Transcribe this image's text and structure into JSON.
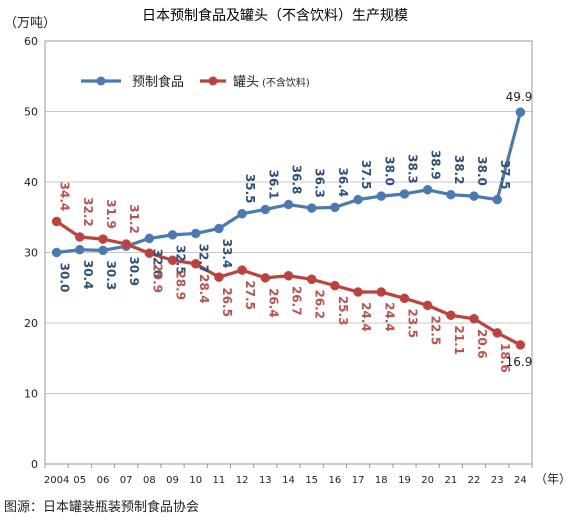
{
  "chart_data": {
    "type": "line",
    "title": "日本预制食品及罐头（不含饮料）生产规模",
    "ylabel": "（万吨）",
    "xlabel": "（年）",
    "source": "图源：日本罐装瓶装预制食品协会",
    "categories": [
      "2004",
      "05",
      "06",
      "07",
      "08",
      "09",
      "10",
      "11",
      "12",
      "13",
      "14",
      "15",
      "16",
      "17",
      "18",
      "19",
      "20",
      "21",
      "22",
      "23",
      "24"
    ],
    "ylim": [
      0,
      60
    ],
    "yticks": [
      "0",
      "10",
      "20",
      "30",
      "40",
      "50",
      "60"
    ],
    "grid": true,
    "legend_position": "top-left",
    "series": [
      {
        "name": "预制食品",
        "color": "#4a7ab5",
        "label_color": "#2e4e7e",
        "values": [
          30.0,
          30.4,
          30.3,
          30.9,
          32.0,
          32.5,
          32.7,
          33.4,
          35.5,
          36.1,
          36.8,
          36.3,
          36.4,
          37.5,
          38.0,
          38.3,
          38.9,
          38.2,
          38.0,
          37.5,
          49.9
        ],
        "labels": [
          "30.0",
          "30.4",
          "30.3",
          "30.9",
          "32.0",
          "32.5",
          "32.7",
          "33.4",
          "35.5",
          "36.1",
          "36.8",
          "36.3",
          "36.4",
          "37.5",
          "38.0",
          "38.3",
          "38.9",
          "38.2",
          "38.0",
          "37.5",
          "49.9"
        ]
      },
      {
        "name": "罐头",
        "name_suffix": "(不含饮料)",
        "color": "#c0413c",
        "label_color": "#c0504d",
        "values": [
          34.4,
          32.2,
          31.9,
          31.2,
          29.9,
          28.9,
          28.4,
          26.5,
          27.5,
          26.4,
          26.7,
          26.2,
          25.3,
          24.4,
          24.4,
          23.5,
          22.5,
          21.1,
          20.6,
          18.6,
          16.9
        ],
        "labels": [
          "34.4",
          "32.2",
          "31.9",
          "31.2",
          "29.9",
          "28.9",
          "28.4",
          "26.5",
          "27.5",
          "26.4",
          "26.7",
          "26.2",
          "25.3",
          "24.4",
          "24.4",
          "23.5",
          "22.5",
          "21.1",
          "20.6",
          "18.6",
          "16.9"
        ]
      }
    ]
  }
}
